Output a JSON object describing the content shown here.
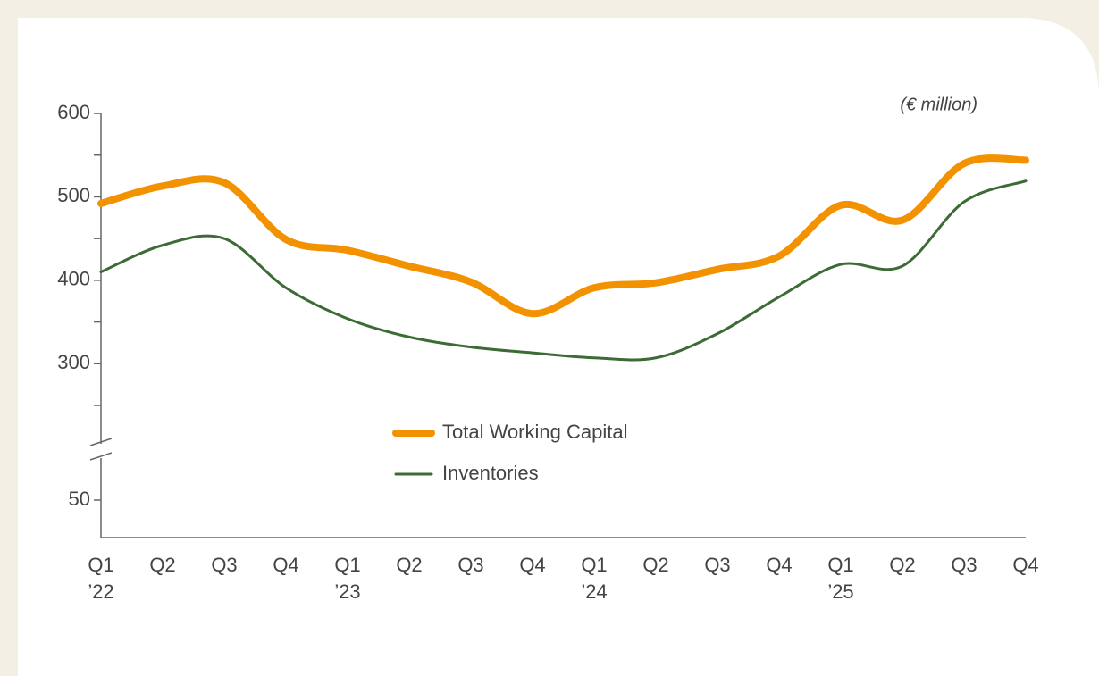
{
  "chart_data": {
    "type": "line",
    "unit_label": "(€ million)",
    "categories": [
      [
        "Q1",
        "’22"
      ],
      [
        "Q2"
      ],
      [
        "Q3"
      ],
      [
        "Q4"
      ],
      [
        "Q1",
        "’23"
      ],
      [
        "Q2"
      ],
      [
        "Q3"
      ],
      [
        "Q4"
      ],
      [
        "Q1",
        "’24"
      ],
      [
        "Q2"
      ],
      [
        "Q3"
      ],
      [
        "Q4"
      ],
      [
        "Q1",
        "’25"
      ],
      [
        "Q2"
      ],
      [
        "Q3"
      ],
      [
        "Q4"
      ]
    ],
    "series": [
      {
        "name": "Total Working Capital",
        "color": "#f39200",
        "values": [
          492,
          513,
          517,
          449,
          436,
          417,
          398,
          360,
          391,
          397,
          413,
          429,
          490,
          472,
          540,
          544
        ]
      },
      {
        "name": "Inventories",
        "color": "#3d6b35",
        "values": [
          410,
          442,
          450,
          391,
          354,
          332,
          320,
          313,
          307,
          307,
          336,
          380,
          419,
          417,
          494,
          519
        ]
      }
    ],
    "ylim": [
      0,
      600
    ],
    "y_break": [
      100,
      250
    ],
    "yticks": [
      50,
      300,
      400,
      500,
      600
    ],
    "yminor": [
      250,
      350,
      450,
      550
    ]
  }
}
